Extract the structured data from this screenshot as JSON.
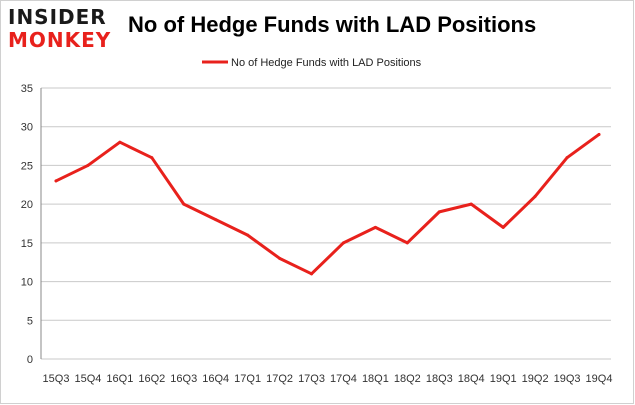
{
  "logo": {
    "line1": "INSIDER",
    "line2": "MONKEY"
  },
  "colors": {
    "series": "#e8211c",
    "grid": "#c9c9c9",
    "axis": "#888888"
  },
  "chart_data": {
    "type": "line",
    "title": "No of Hedge Funds with LAD Positions",
    "xlabel": "",
    "ylabel": "",
    "ylim": [
      0,
      35
    ],
    "yticks": [
      0,
      5,
      10,
      15,
      20,
      25,
      30,
      35
    ],
    "legend": "top-center",
    "grid": true,
    "categories": [
      "15Q3",
      "15Q4",
      "16Q1",
      "16Q2",
      "16Q3",
      "16Q4",
      "17Q1",
      "17Q2",
      "17Q3",
      "17Q4",
      "18Q1",
      "18Q2",
      "18Q3",
      "18Q4",
      "19Q1",
      "19Q2",
      "19Q3",
      "19Q4"
    ],
    "series": [
      {
        "name": "No of Hedge Funds with LAD Positions",
        "values": [
          23,
          25,
          28,
          26,
          20,
          18,
          16,
          13,
          11,
          15,
          17,
          15,
          19,
          20,
          17,
          21,
          26,
          29
        ]
      }
    ]
  }
}
